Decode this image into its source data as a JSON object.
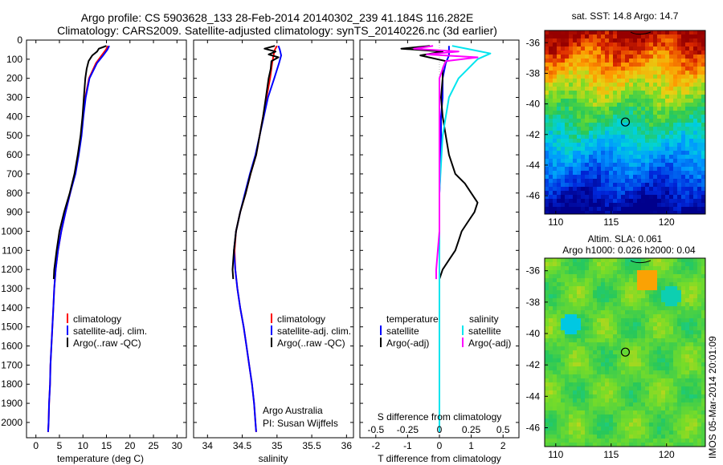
{
  "title_line1": "Argo profile: CS 5903628_133 28-Feb-2014 20140302_239 41.184S 116.282E",
  "title_line2": "Climatology: CARS2009. Satellite-adjusted climatology: synTS_20140226.nc (3d earlier)",
  "stamp": "IMOS 05-Mar-2014 20:01:09",
  "colors": {
    "climatology": "#ff0000",
    "satellite": "#0000ff",
    "argo": "#000000",
    "satellite_s": "#00e5ee",
    "argo_adj_s": "#ff00ff"
  },
  "chart_data": [
    {
      "type": "line",
      "name": "temperature-profile",
      "xlabel": "temperature (deg C)",
      "ylim": [
        2080,
        0
      ],
      "xlim": [
        -2,
        32
      ],
      "xticks": [
        "0",
        "5",
        "10",
        "15",
        "20",
        "25",
        "30"
      ],
      "xtick_values": [
        0,
        5,
        10,
        15,
        20,
        25,
        30
      ],
      "yticks": [
        "0",
        "100",
        "200",
        "300",
        "400",
        "500",
        "600",
        "700",
        "800",
        "900",
        "1000",
        "1100",
        "1200",
        "1300",
        "1400",
        "1500",
        "1600",
        "1700",
        "1800",
        "1900",
        "2000"
      ],
      "ytick_values": [
        0,
        100,
        200,
        300,
        400,
        500,
        600,
        700,
        800,
        900,
        1000,
        1100,
        1200,
        1300,
        1400,
        1500,
        1600,
        1700,
        1800,
        1900,
        2000
      ],
      "legend": [
        "climatology",
        "satellite-adj. clim.",
        "Argo(..raw -QC)"
      ],
      "series": [
        {
          "name": "climatology",
          "depth": [
            30,
            50,
            80,
            120,
            200,
            300,
            400,
            500,
            600,
            700,
            800,
            900,
            1000,
            1100,
            1200,
            1300,
            1400,
            1500,
            1600,
            1700,
            1800,
            1900,
            2000,
            2050
          ],
          "values": [
            15.3,
            14.9,
            14.0,
            12.8,
            11.3,
            10.5,
            10.0,
            9.6,
            9.0,
            8.3,
            7.3,
            6.3,
            5.4,
            4.7,
            4.2,
            3.9,
            3.7,
            3.5,
            3.3,
            3.1,
            3.0,
            2.8,
            2.7,
            2.6
          ]
        },
        {
          "name": "satellite-adj. clim.",
          "depth": [
            30,
            50,
            80,
            120,
            200,
            300,
            400,
            500,
            600,
            700,
            800,
            900,
            1000,
            1100,
            1200,
            1300,
            1400,
            1500,
            1600,
            1700,
            1800,
            1900,
            2000,
            2050
          ],
          "values": [
            15.6,
            15.2,
            14.3,
            13.0,
            11.4,
            10.6,
            10.1,
            9.7,
            9.1,
            8.4,
            7.3,
            6.3,
            5.4,
            4.7,
            4.2,
            3.9,
            3.7,
            3.5,
            3.3,
            3.1,
            3.0,
            2.8,
            2.7,
            2.6
          ]
        },
        {
          "name": "Argo(..raw -QC)",
          "depth": [
            30,
            45,
            60,
            80,
            110,
            150,
            200,
            300,
            400,
            500,
            600,
            700,
            800,
            900,
            1000,
            1100,
            1200,
            1250
          ],
          "values": [
            15.0,
            13.4,
            13.0,
            12.0,
            11.2,
            10.8,
            10.5,
            10.2,
            9.9,
            9.5,
            8.9,
            8.2,
            7.2,
            6.0,
            5.0,
            4.4,
            3.9,
            3.8
          ]
        }
      ]
    },
    {
      "type": "line",
      "name": "salinity-profile",
      "xlabel": "salinity",
      "ylim": [
        2080,
        0
      ],
      "xlim": [
        33.8,
        36.1
      ],
      "xticks": [
        "34",
        "34.5",
        "35",
        "35.5",
        "36"
      ],
      "xtick_values": [
        34,
        34.5,
        35,
        35.5,
        36
      ],
      "legend": [
        "climatology",
        "satellite-adj. clim.",
        "Argo(..raw -QC)"
      ],
      "annotation_line1": "Argo Australia",
      "annotation_line2": "PI: Susan Wijffels",
      "series": [
        {
          "name": "climatology",
          "depth": [
            30,
            50,
            80,
            120,
            200,
            300,
            400,
            500,
            600,
            700,
            800,
            900,
            1000,
            1100,
            1200,
            1300,
            1400,
            1500,
            1600,
            1700,
            1800,
            1900,
            2000,
            2050
          ],
          "values": [
            35.0,
            34.97,
            34.95,
            34.93,
            34.9,
            34.85,
            34.8,
            34.75,
            34.7,
            34.62,
            34.55,
            34.47,
            34.41,
            34.39,
            34.4,
            34.43,
            34.47,
            34.52,
            34.56,
            34.6,
            34.64,
            34.67,
            34.69,
            34.7
          ]
        },
        {
          "name": "satellite-adj. clim.",
          "depth": [
            30,
            50,
            80,
            120,
            200,
            300,
            400,
            500,
            600,
            700,
            800,
            900,
            1000,
            1100,
            1200,
            1300,
            1400,
            1500,
            1600,
            1700,
            1800,
            1900,
            2000,
            2050
          ],
          "values": [
            35.02,
            35.04,
            35.06,
            35.03,
            34.96,
            34.87,
            34.81,
            34.75,
            34.69,
            34.61,
            34.54,
            34.47,
            34.41,
            34.38,
            34.4,
            34.43,
            34.47,
            34.52,
            34.56,
            34.6,
            34.64,
            34.67,
            34.69,
            34.7
          ]
        },
        {
          "name": "Argo(..raw -QC)",
          "depth": [
            30,
            45,
            60,
            75,
            90,
            110,
            150,
            200,
            300,
            400,
            500,
            600,
            700,
            800,
            900,
            1000,
            1100,
            1200,
            1250
          ],
          "values": [
            34.97,
            34.82,
            34.98,
            34.88,
            35.02,
            34.92,
            34.91,
            34.88,
            34.84,
            34.8,
            34.75,
            34.7,
            34.62,
            34.55,
            34.47,
            34.41,
            34.38,
            34.36,
            34.37
          ]
        }
      ]
    },
    {
      "type": "line",
      "name": "difference-profile",
      "xlabel": "T difference from climatology",
      "xlabel_top": "S difference from climatology",
      "ylim": [
        2080,
        0
      ],
      "xlim": [
        -2.5,
        2.5
      ],
      "xticks": [
        "-2",
        "-1",
        "0",
        "1",
        "2"
      ],
      "xtick_values": [
        -2,
        -1,
        0,
        1,
        2
      ],
      "sticks": [
        "-0.5",
        "-0.25",
        "0",
        "0.25",
        "0.5"
      ],
      "stick_values": [
        -2,
        -1,
        0,
        1,
        2
      ],
      "legend_temperature": "temperature",
      "legend_salinity": "salinity",
      "legend_items": [
        "satellite",
        "Argo(-adj)",
        "satellite",
        "Argo(-adj)"
      ],
      "series": [
        {
          "name": "temperature satellite",
          "depth": [
            30,
            50,
            80,
            120,
            200,
            300,
            400,
            600,
            800,
            1200,
            2050
          ],
          "values": [
            0.3,
            0.3,
            0.3,
            0.2,
            0.1,
            0.1,
            0.05,
            0.05,
            0,
            0,
            0
          ]
        },
        {
          "name": "temperature Argo(-adj)",
          "depth": [
            30,
            45,
            60,
            80,
            110,
            150,
            200,
            300,
            400,
            500,
            600,
            700,
            750,
            800,
            850,
            900,
            950,
            1000,
            1050,
            1100,
            1150,
            1200,
            1250
          ],
          "values": [
            -0.3,
            -1.2,
            0.1,
            -0.6,
            0.2,
            0.1,
            0.1,
            0.05,
            0.1,
            0.2,
            0.3,
            0.5,
            0.8,
            1.0,
            1.2,
            1.1,
            0.9,
            0.7,
            0.6,
            0.5,
            0.3,
            0.1,
            0
          ]
        },
        {
          "name": "salinity satellite",
          "depth": [
            30,
            50,
            70,
            100,
            200,
            300,
            500,
            800,
            1200,
            2050
          ],
          "values": [
            0.4,
            1.0,
            1.6,
            1.2,
            0.6,
            0.3,
            0.1,
            0,
            0,
            0
          ]
        },
        {
          "name": "salinity Argo(-adj)",
          "depth": [
            30,
            45,
            60,
            75,
            90,
            110,
            150,
            200,
            300,
            400,
            600,
            800,
            1000,
            1200,
            1250
          ],
          "values": [
            -0.2,
            -0.8,
            0.6,
            -0.4,
            1.2,
            0.2,
            0.1,
            0,
            0,
            0,
            0,
            0,
            0,
            -0.1,
            -0.1
          ]
        }
      ]
    },
    {
      "type": "heatmap",
      "name": "sst-map",
      "title": "sat. SST: 14.8  Argo: 14.7",
      "xticks": [
        "110",
        "115",
        "120"
      ],
      "xtick_values": [
        110,
        115,
        120
      ],
      "yticks": [
        "-36",
        "-38",
        "-40",
        "-42",
        "-44",
        "-46"
      ],
      "ytick_values": [
        -36,
        -38,
        -40,
        -42,
        -44,
        -46
      ],
      "xlim": [
        109,
        123.5
      ],
      "ylim": [
        -47.2,
        -35.2
      ],
      "marker": [
        116.282,
        -41.184
      ]
    },
    {
      "type": "heatmap",
      "name": "sla-map",
      "title_line1": "Altim. SLA: 0.061",
      "title_line2": "Argo h1000: 0.026 h2000: 0.04",
      "xticks": [
        "110",
        "115",
        "120"
      ],
      "xtick_values": [
        110,
        115,
        120
      ],
      "yticks": [
        "-36",
        "-38",
        "-40",
        "-42",
        "-44",
        "-46"
      ],
      "ytick_values": [
        -36,
        -38,
        -40,
        -42,
        -44,
        -46
      ],
      "xlim": [
        109,
        123.5
      ],
      "ylim": [
        -47.2,
        -35.2
      ],
      "marker": [
        116.282,
        -41.184
      ]
    }
  ]
}
